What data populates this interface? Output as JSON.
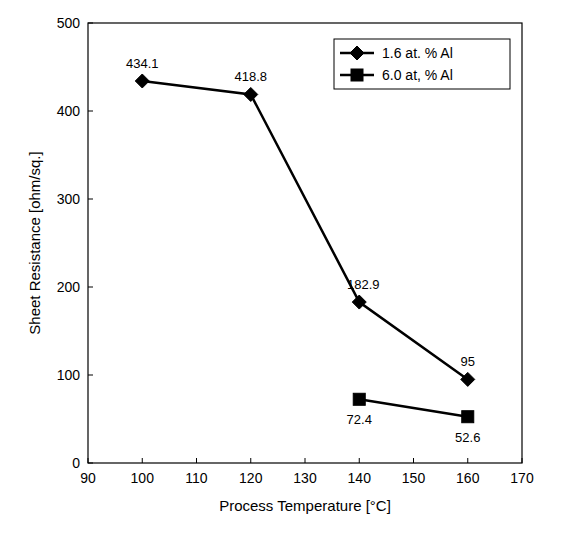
{
  "chart_data": {
    "type": "line",
    "x_label": "Process Temperature [°C]",
    "y_label": "Sheet Resistance [ohm/sq.]",
    "series": [
      {
        "name": "1.6 at. % Al",
        "color": "#000000",
        "marker": "diamond",
        "line_style": "solid",
        "x": [
          100,
          120,
          140,
          160
        ],
        "values": [
          434.1,
          418.8,
          182.9,
          95
        ]
      },
      {
        "name": "6.0 at, % Al",
        "color": "#000000",
        "marker": "square",
        "line_style": "solid",
        "x": [
          140,
          160
        ],
        "values": [
          72.4,
          52.6
        ]
      }
    ],
    "xlim": [
      90,
      170
    ],
    "xticks": [
      90,
      100,
      110,
      120,
      130,
      140,
      150,
      160,
      170
    ],
    "ylim": [
      0,
      500
    ],
    "yticks": [
      0,
      100,
      200,
      300,
      400,
      500
    ],
    "grid": false,
    "legend": "upper right",
    "data_labels": true
  }
}
